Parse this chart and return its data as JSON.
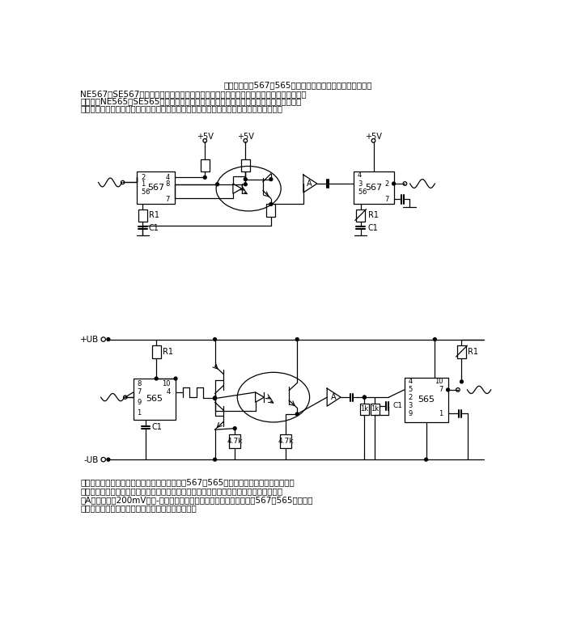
{
  "title_top": "分别示出采用567、565和光耦构成的模拟信号隔离器电路。",
  "text_line2": "NE567或SE567为由高稳定度锁相环构成的音调和频率译码器，具有同步调幅检测和功率输",
  "text_line3": "出电路。NE565或SE565函数发生器是一种由方波和三角波缓冲输入的高线性度压控振荡",
  "text_line4": "器，振荡频率由外部电阻和电容以及施加在控制端的电压决定。图中所示两种电路基本上属",
  "bottom_line1": "于用光线作媒介的调频传输系统。发射部分采用567或565锁相环构成压控振荡器，使光电",
  "bottom_line2": "耦合器中发光二极管发光，闪烁频率正比于输入电压。光敏晶体管驱动具有足够增益的放大",
  "bottom_line3": "器A，以便把约200mV的峰-峰电压信号放大，再加到作为调频检波器的567或565接收部分",
  "bottom_line4": "输入端，最后输出将重现发射部分的模拟输入信号。",
  "bg_color": "#ffffff",
  "line_color": "#000000",
  "text_color": "#000000"
}
